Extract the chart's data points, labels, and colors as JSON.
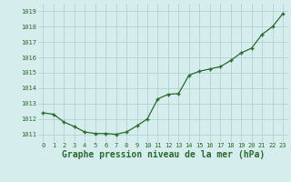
{
  "x": [
    0,
    1,
    2,
    3,
    4,
    5,
    6,
    7,
    8,
    9,
    10,
    11,
    12,
    13,
    14,
    15,
    16,
    17,
    18,
    19,
    20,
    21,
    22,
    23
  ],
  "y": [
    1012.4,
    1012.3,
    1011.8,
    1011.5,
    1011.15,
    1011.05,
    1011.05,
    1011.0,
    1011.15,
    1011.55,
    1012.0,
    1013.3,
    1013.6,
    1013.65,
    1014.85,
    1015.1,
    1015.25,
    1015.4,
    1015.8,
    1016.3,
    1016.6,
    1017.5,
    1018.0,
    1018.85
  ],
  "xlim": [
    -0.5,
    23.5
  ],
  "ylim": [
    1010.5,
    1019.5
  ],
  "yticks": [
    1011,
    1012,
    1013,
    1014,
    1015,
    1016,
    1017,
    1018,
    1019
  ],
  "xticks": [
    0,
    1,
    2,
    3,
    4,
    5,
    6,
    7,
    8,
    9,
    10,
    11,
    12,
    13,
    14,
    15,
    16,
    17,
    18,
    19,
    20,
    21,
    22,
    23
  ],
  "line_color": "#2d6a2d",
  "marker": "+",
  "marker_size": 3.5,
  "background_color": "#d5eeed",
  "grid_color": "#aacece",
  "xlabel": "Graphe pression niveau de la mer (hPa)",
  "xlabel_color": "#2d6a2d",
  "tick_label_color": "#2d6a2d",
  "tick_label_fontsize": 5.0,
  "xlabel_fontsize": 7.0,
  "linewidth": 0.9
}
